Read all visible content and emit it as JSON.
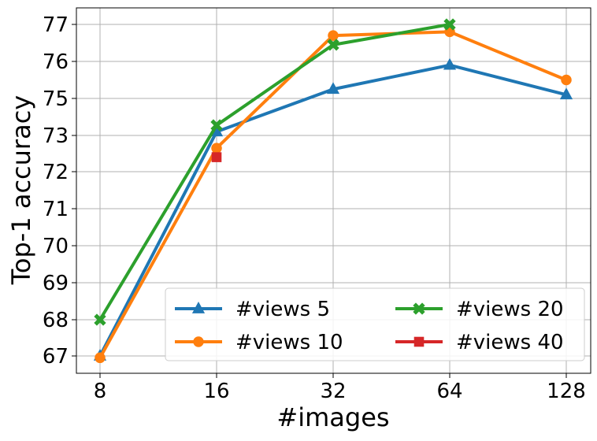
{
  "chart_data": {
    "type": "line",
    "xlabel": "#images",
    "ylabel": "Top-1 accuracy",
    "x_scale": "log2",
    "x": [
      8,
      16,
      32,
      64,
      128
    ],
    "x_tick_labels": [
      "8",
      "16",
      "32",
      "64",
      "128"
    ],
    "y_ticks": [
      67,
      68,
      69,
      70,
      71,
      72,
      73,
      75,
      76,
      77
    ],
    "y_tick_labels": [
      "67",
      "68",
      "69",
      "70",
      "71",
      "72",
      "73",
      "75",
      "76",
      "77"
    ],
    "grid": true,
    "legend": {
      "placement": "lower-right",
      "columns": 2
    },
    "series": [
      {
        "name": "#views 5",
        "color": "#1f77b4",
        "marker": "triangle",
        "points": [
          [
            8,
            67.0
          ],
          [
            16,
            73.2
          ],
          [
            32,
            75.25
          ],
          [
            64,
            75.9
          ],
          [
            128,
            75.1
          ]
        ]
      },
      {
        "name": "#views 10",
        "color": "#ff7f0e",
        "marker": "circle",
        "points": [
          [
            8,
            66.95
          ],
          [
            16,
            72.65
          ],
          [
            32,
            76.7
          ],
          [
            64,
            76.8
          ],
          [
            128,
            75.5
          ]
        ]
      },
      {
        "name": "#views 20",
        "color": "#2ca02c",
        "marker": "x",
        "points": [
          [
            8,
            68.0
          ],
          [
            16,
            73.55
          ],
          [
            32,
            76.45
          ],
          [
            64,
            77.0
          ]
        ]
      },
      {
        "name": "#views 40",
        "color": "#d62728",
        "marker": "square",
        "points": [
          [
            16,
            72.4
          ]
        ]
      }
    ]
  }
}
